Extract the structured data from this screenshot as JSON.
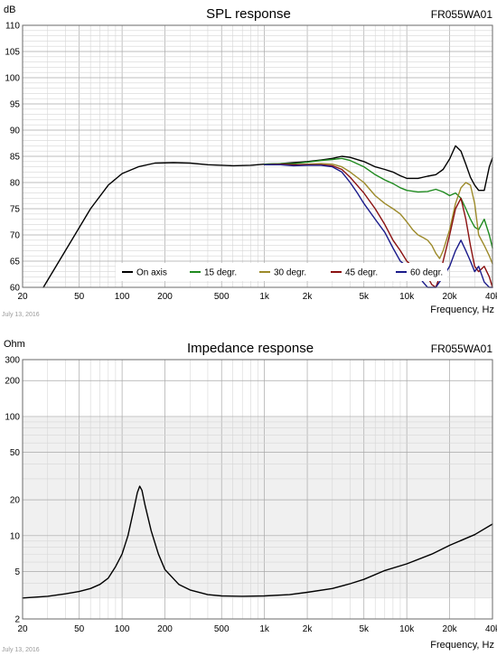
{
  "chart_data": [
    {
      "type": "line",
      "title": "SPL response",
      "model": "FR055WA01",
      "ylabel": "dB",
      "xlabel": "Frequency, Hz",
      "date": "July 13, 2016",
      "x_scale": "log",
      "xlim": [
        20,
        40000
      ],
      "ylim": [
        60,
        110
      ],
      "x_ticks": [
        {
          "value": 20,
          "label": "20"
        },
        {
          "value": 50,
          "label": "50"
        },
        {
          "value": 100,
          "label": "100"
        },
        {
          "value": 200,
          "label": "200"
        },
        {
          "value": 500,
          "label": "500"
        },
        {
          "value": 1000,
          "label": "1k"
        },
        {
          "value": 2000,
          "label": "2k"
        },
        {
          "value": 5000,
          "label": "5k"
        },
        {
          "value": 10000,
          "label": "10k"
        },
        {
          "value": 20000,
          "label": "20k"
        },
        {
          "value": 40000,
          "label": "40k"
        }
      ],
      "y_ticks": [
        {
          "value": 60,
          "label": "60"
        },
        {
          "value": 65,
          "label": "65"
        },
        {
          "value": 70,
          "label": "70"
        },
        {
          "value": 75,
          "label": "75"
        },
        {
          "value": 80,
          "label": "80"
        },
        {
          "value": 85,
          "label": "85"
        },
        {
          "value": 90,
          "label": "90"
        },
        {
          "value": 95,
          "label": "95"
        },
        {
          "value": 100,
          "label": "100"
        },
        {
          "value": 105,
          "label": "105"
        },
        {
          "value": 110,
          "label": "110"
        }
      ],
      "legend_position": "bottom",
      "series": [
        {
          "name": "On axis",
          "color": "#000000",
          "points": [
            [
              28,
              60
            ],
            [
              40,
              67
            ],
            [
              60,
              75
            ],
            [
              80,
              79.5
            ],
            [
              100,
              81.7
            ],
            [
              130,
              83
            ],
            [
              170,
              83.7
            ],
            [
              230,
              83.8
            ],
            [
              300,
              83.7
            ],
            [
              400,
              83.4
            ],
            [
              600,
              83.2
            ],
            [
              800,
              83.3
            ],
            [
              1000,
              83.5
            ],
            [
              1300,
              83.6
            ],
            [
              1600,
              83.8
            ],
            [
              2000,
              84.0
            ],
            [
              2500,
              84.3
            ],
            [
              3000,
              84.6
            ],
            [
              3500,
              85.0
            ],
            [
              4000,
              84.8
            ],
            [
              5000,
              84.0
            ],
            [
              6000,
              83.0
            ],
            [
              7000,
              82.5
            ],
            [
              8000,
              82
            ],
            [
              9000,
              81.3
            ],
            [
              10000,
              80.8
            ],
            [
              12000,
              80.8
            ],
            [
              14000,
              81.2
            ],
            [
              16000,
              81.5
            ],
            [
              18000,
              82.5
            ],
            [
              20000,
              84.5
            ],
            [
              22000,
              87
            ],
            [
              24000,
              86
            ],
            [
              26000,
              83.5
            ],
            [
              28000,
              81
            ],
            [
              30000,
              79.5
            ],
            [
              32000,
              78.5
            ],
            [
              35000,
              78.5
            ],
            [
              38000,
              83
            ],
            [
              40000,
              84.7
            ]
          ]
        },
        {
          "name": "15 degr.",
          "color": "#1f8a1f",
          "points": [
            [
              1000,
              83.5
            ],
            [
              1300,
              83.6
            ],
            [
              1600,
              83.6
            ],
            [
              2000,
              83.9
            ],
            [
              2500,
              84.2
            ],
            [
              3000,
              84.4
            ],
            [
              3500,
              84.6
            ],
            [
              4000,
              84.2
            ],
            [
              5000,
              83
            ],
            [
              6000,
              81.5
            ],
            [
              7000,
              80.5
            ],
            [
              8000,
              79.8
            ],
            [
              9000,
              79
            ],
            [
              10000,
              78.5
            ],
            [
              12000,
              78.2
            ],
            [
              14000,
              78.3
            ],
            [
              16000,
              78.7
            ],
            [
              18000,
              78.2
            ],
            [
              20000,
              77.5
            ],
            [
              22000,
              78
            ],
            [
              24000,
              77
            ],
            [
              26000,
              75
            ],
            [
              28000,
              73
            ],
            [
              30000,
              71.5
            ],
            [
              32000,
              71
            ],
            [
              35000,
              73
            ],
            [
              38000,
              70
            ],
            [
              40000,
              67.5
            ]
          ]
        },
        {
          "name": "30 degr.",
          "color": "#9c8a2a",
          "points": [
            [
              1000,
              83.4
            ],
            [
              1300,
              83.5
            ],
            [
              1600,
              83.4
            ],
            [
              2000,
              83.5
            ],
            [
              2500,
              83.6
            ],
            [
              3000,
              83.5
            ],
            [
              3500,
              83
            ],
            [
              4000,
              82
            ],
            [
              5000,
              80
            ],
            [
              6000,
              77.5
            ],
            [
              7000,
              76
            ],
            [
              8000,
              75
            ],
            [
              9000,
              74
            ],
            [
              10000,
              72.5
            ],
            [
              11000,
              71
            ],
            [
              12000,
              70
            ],
            [
              13000,
              69.5
            ],
            [
              14000,
              69
            ],
            [
              15000,
              68
            ],
            [
              16000,
              66.5
            ],
            [
              17000,
              65.5
            ],
            [
              18000,
              67
            ],
            [
              20000,
              71
            ],
            [
              22000,
              76
            ],
            [
              24000,
              79
            ],
            [
              26000,
              80
            ],
            [
              28000,
              79.5
            ],
            [
              30000,
              76
            ],
            [
              32000,
              70
            ],
            [
              35000,
              68
            ],
            [
              38000,
              66
            ],
            [
              40000,
              64.5
            ]
          ]
        },
        {
          "name": "45 degr.",
          "color": "#8a1010",
          "points": [
            [
              1000,
              83.4
            ],
            [
              1300,
              83.5
            ],
            [
              1600,
              83.4
            ],
            [
              2000,
              83.4
            ],
            [
              2500,
              83.4
            ],
            [
              3000,
              83.2
            ],
            [
              3500,
              82.5
            ],
            [
              4000,
              81
            ],
            [
              5000,
              78
            ],
            [
              6000,
              75
            ],
            [
              7000,
              72
            ],
            [
              8000,
              69
            ],
            [
              9000,
              67
            ],
            [
              10000,
              65
            ],
            [
              11000,
              64
            ],
            [
              12000,
              63.5
            ],
            [
              13000,
              63
            ],
            [
              14000,
              62
            ],
            [
              15000,
              60.5
            ],
            [
              16000,
              60
            ],
            [
              17000,
              62
            ],
            [
              18000,
              65
            ],
            [
              20000,
              70
            ],
            [
              22000,
              75
            ],
            [
              24000,
              77
            ],
            [
              26000,
              73
            ],
            [
              28000,
              68
            ],
            [
              30000,
              64
            ],
            [
              32000,
              63
            ],
            [
              35000,
              64
            ],
            [
              38000,
              62
            ],
            [
              40000,
              60
            ]
          ]
        },
        {
          "name": "60 degr.",
          "color": "#1a1a8a",
          "points": [
            [
              1000,
              83.4
            ],
            [
              1300,
              83.4
            ],
            [
              1600,
              83.2
            ],
            [
              2000,
              83.3
            ],
            [
              2500,
              83.3
            ],
            [
              3000,
              83
            ],
            [
              3500,
              82
            ],
            [
              4000,
              80
            ],
            [
              4500,
              78
            ],
            [
              5000,
              76
            ],
            [
              6000,
              73
            ],
            [
              7000,
              70.5
            ],
            [
              8000,
              67.5
            ],
            [
              9000,
              65
            ],
            [
              10000,
              64
            ],
            [
              11000,
              63.5
            ],
            [
              12000,
              62.5
            ],
            [
              13000,
              61
            ],
            [
              14000,
              60
            ],
            [
              16000,
              60
            ],
            [
              18000,
              62
            ],
            [
              20000,
              64
            ],
            [
              22000,
              67
            ],
            [
              24000,
              69
            ],
            [
              26000,
              67
            ],
            [
              28000,
              65
            ],
            [
              30000,
              63
            ],
            [
              32000,
              64
            ],
            [
              35000,
              61
            ],
            [
              38000,
              60
            ],
            [
              40000,
              60
            ]
          ]
        }
      ]
    },
    {
      "type": "line",
      "title": "Impedance response",
      "model": "FR055WA01",
      "ylabel": "Ohm",
      "xlabel": "Frequency, Hz",
      "date": "July 13, 2016",
      "x_scale": "log",
      "y_scale": "log",
      "xlim": [
        20,
        40000
      ],
      "ylim": [
        2,
        300
      ],
      "x_ticks": [
        {
          "value": 20,
          "label": "20"
        },
        {
          "value": 50,
          "label": "50"
        },
        {
          "value": 100,
          "label": "100"
        },
        {
          "value": 200,
          "label": "200"
        },
        {
          "value": 500,
          "label": "500"
        },
        {
          "value": 1000,
          "label": "1k"
        },
        {
          "value": 2000,
          "label": "2k"
        },
        {
          "value": 5000,
          "label": "5k"
        },
        {
          "value": 10000,
          "label": "10k"
        },
        {
          "value": 20000,
          "label": "20k"
        },
        {
          "value": 40000,
          "label": "40k"
        }
      ],
      "y_ticks": [
        {
          "value": 2,
          "label": "2"
        },
        {
          "value": 5,
          "label": "5"
        },
        {
          "value": 10,
          "label": "10"
        },
        {
          "value": 20,
          "label": "20"
        },
        {
          "value": 50,
          "label": "50"
        },
        {
          "value": 100,
          "label": "100"
        },
        {
          "value": 200,
          "label": "200"
        },
        {
          "value": 300,
          "label": "300"
        }
      ],
      "shaded_bands": [
        [
          10,
          100
        ],
        [
          3,
          10
        ]
      ],
      "series": [
        {
          "name": "Impedance",
          "color": "#000000",
          "points": [
            [
              20,
              3.0
            ],
            [
              30,
              3.1
            ],
            [
              40,
              3.25
            ],
            [
              50,
              3.4
            ],
            [
              60,
              3.6
            ],
            [
              70,
              3.9
            ],
            [
              80,
              4.4
            ],
            [
              90,
              5.5
            ],
            [
              100,
              7
            ],
            [
              110,
              10
            ],
            [
              120,
              16
            ],
            [
              128,
              23
            ],
            [
              133,
              26
            ],
            [
              138,
              24
            ],
            [
              145,
              18
            ],
            [
              160,
              11
            ],
            [
              180,
              7
            ],
            [
              200,
              5.2
            ],
            [
              250,
              3.9
            ],
            [
              300,
              3.5
            ],
            [
              400,
              3.2
            ],
            [
              500,
              3.12
            ],
            [
              700,
              3.1
            ],
            [
              1000,
              3.12
            ],
            [
              1500,
              3.2
            ],
            [
              2000,
              3.35
            ],
            [
              3000,
              3.6
            ],
            [
              4000,
              3.95
            ],
            [
              5000,
              4.3
            ],
            [
              7000,
              5.1
            ],
            [
              10000,
              5.8
            ],
            [
              15000,
              7.0
            ],
            [
              20000,
              8.3
            ],
            [
              30000,
              10.2
            ],
            [
              40000,
              12.5
            ]
          ]
        }
      ]
    }
  ]
}
